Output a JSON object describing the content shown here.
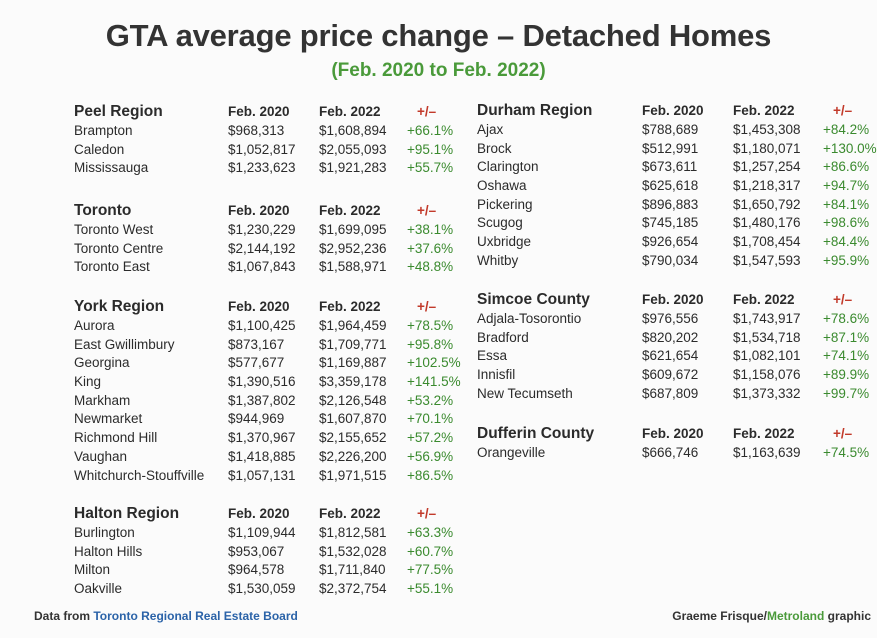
{
  "title": "GTA average price change – Detached Homes",
  "subtitle": "(Feb. 2020 to Feb. 2022)",
  "columns": {
    "feb2020": "Feb. 2020",
    "feb2022": "Feb. 2022",
    "change": "+/–"
  },
  "left_regions": [
    {
      "name": "Peel Region",
      "rows": [
        [
          "Brampton",
          "$968,313",
          "$1,608,894",
          "+66.1%"
        ],
        [
          "Caledon",
          "$1,052,817",
          "$2,055,093",
          "+95.1%"
        ],
        [
          "Mississauga",
          "$1,233,623",
          "$1,921,283",
          "+55.7%"
        ]
      ]
    },
    {
      "name": "Toronto",
      "rows": [
        [
          "Toronto West",
          "$1,230,229",
          "$1,699,095",
          "+38.1%"
        ],
        [
          "Toronto Centre",
          "$2,144,192",
          "$2,952,236",
          "+37.6%"
        ],
        [
          "Toronto East",
          "$1,067,843",
          "$1,588,971",
          "+48.8%"
        ]
      ]
    },
    {
      "name": "York Region",
      "rows": [
        [
          "Aurora",
          "$1,100,425",
          "$1,964,459",
          "+78.5%"
        ],
        [
          "East Gwillimbury",
          "$873,167",
          "$1,709,771",
          "+95.8%"
        ],
        [
          "Georgina",
          "$577,677",
          "$1,169,887",
          "+102.5%"
        ],
        [
          "King",
          "$1,390,516",
          "$3,359,178",
          "+141.5%"
        ],
        [
          "Markham",
          "$1,387,802",
          "$2,126,548",
          "+53.2%"
        ],
        [
          "Newmarket",
          "$944,969",
          "$1,607,870",
          "+70.1%"
        ],
        [
          "Richmond Hill",
          "$1,370,967",
          "$2,155,652",
          "+57.2%"
        ],
        [
          "Vaughan",
          "$1,418,885",
          "$2,226,200",
          "+56.9%"
        ],
        [
          "Whitchurch-Stouffville",
          "$1,057,131",
          "$1,971,515",
          "+86.5%"
        ]
      ]
    },
    {
      "name": "Halton Region",
      "rows": [
        [
          "Burlington",
          "$1,109,944",
          "$1,812,581",
          "+63.3%"
        ],
        [
          "Halton Hills",
          "$953,067",
          "$1,532,028",
          "+60.7%"
        ],
        [
          "Milton",
          "$964,578",
          "$1,711,840",
          "+77.5%"
        ],
        [
          "Oakville",
          "$1,530,059",
          "$2,372,754",
          "+55.1%"
        ]
      ]
    }
  ],
  "right_regions": [
    {
      "name": "Durham Region",
      "rows": [
        [
          "Ajax",
          "$788,689",
          "$1,453,308",
          "+84.2%"
        ],
        [
          "Brock",
          "$512,991",
          "$1,180,071",
          "+130.0%"
        ],
        [
          "Clarington",
          "$673,611",
          "$1,257,254",
          "+86.6%"
        ],
        [
          "Oshawa",
          "$625,618",
          "$1,218,317",
          "+94.7%"
        ],
        [
          "Pickering",
          "$896,883",
          "$1,650,792",
          "+84.1%"
        ],
        [
          "Scugog",
          "$745,185",
          "$1,480,176",
          "+98.6%"
        ],
        [
          "Uxbridge",
          "$926,654",
          "$1,708,454",
          "+84.4%"
        ],
        [
          "Whitby",
          "$790,034",
          "$1,547,593",
          "+95.9%"
        ]
      ]
    },
    {
      "name": "Simcoe County",
      "rows": [
        [
          "Adjala-Tosorontio",
          "$976,556",
          "$1,743,917",
          "+78.6%"
        ],
        [
          "Bradford",
          "$820,202",
          "$1,534,718",
          "+87.1%"
        ],
        [
          "Essa",
          "$621,654",
          "$1,082,101",
          "+74.1%"
        ],
        [
          "Innisfil",
          "$609,672",
          "$1,158,076",
          "+89.9%"
        ],
        [
          "New Tecumseth",
          "$687,809",
          "$1,373,332",
          "+99.7%"
        ]
      ]
    },
    {
      "name": "Dufferin County",
      "rows": [
        [
          "Orangeville",
          "$666,746",
          "$1,163,639",
          "+74.5%"
        ]
      ]
    }
  ],
  "footer": {
    "source_prefix": "Data from",
    "source_name": "Toronto Regional Real Estate Board",
    "credit_name": "Graeme Frisque/",
    "credit_org": "Metroland",
    "credit_suffix": " graphic"
  }
}
